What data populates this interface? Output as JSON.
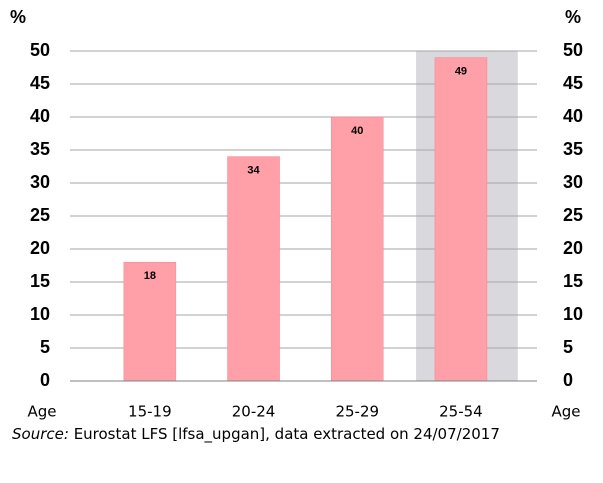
{
  "chart_data": {
    "type": "bar",
    "y_label": "%",
    "y2_label": "%",
    "x_label": "Age",
    "categories": [
      "15-19",
      "20-24",
      "25-29",
      "25-54"
    ],
    "values": [
      18,
      34,
      40,
      49
    ],
    "color": "#ff9fa7",
    "highlight": 3,
    "highlight_color": "#d9d8dd",
    "ylim": [
      0,
      50
    ],
    "yticks": [
      0,
      5,
      10,
      15,
      20,
      25,
      30,
      35,
      40,
      45,
      50
    ],
    "y2lim": [
      0,
      50
    ],
    "y2ticks": [
      0,
      5,
      10,
      15,
      20,
      25,
      30,
      35,
      40,
      45,
      50
    ],
    "grid": true,
    "source_label": "Source:",
    "source": "Eurostat LFS [lfsa_upgan], data extracted on 24/07/2017"
  }
}
